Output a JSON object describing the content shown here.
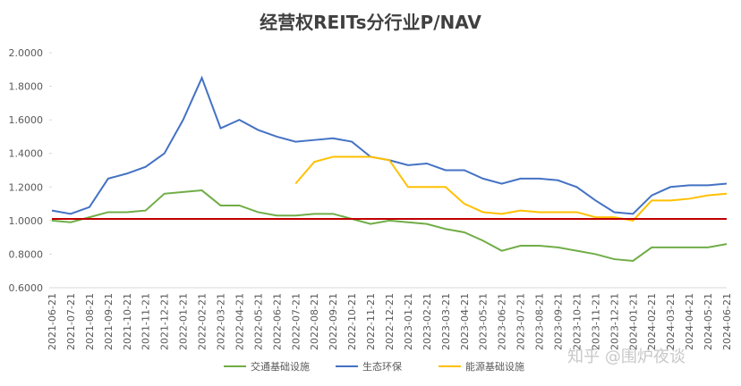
{
  "chart_data": {
    "type": "line",
    "title": "经营权REITs分行业P/NAV",
    "x": [
      "2021-06-21",
      "2021-07-21",
      "2021-08-21",
      "2021-09-21",
      "2021-10-21",
      "2021-11-21",
      "2021-12-21",
      "2022-01-21",
      "2022-02-21",
      "2022-03-21",
      "2022-04-21",
      "2022-05-21",
      "2022-06-21",
      "2022-07-21",
      "2022-08-21",
      "2022-09-21",
      "2022-10-21",
      "2022-11-21",
      "2022-12-21",
      "2023-01-21",
      "2023-02-21",
      "2023-03-21",
      "2023-04-21",
      "2023-05-21",
      "2023-06-21",
      "2023-07-21",
      "2023-08-21",
      "2023-09-21",
      "2023-10-21",
      "2023-11-21",
      "2023-12-21",
      "2024-01-21",
      "2024-02-21",
      "2024-03-21",
      "2024-04-21",
      "2024-05-21",
      "2024-06-21"
    ],
    "series": [
      {
        "name": "交通基础设施",
        "color": "#70ad47",
        "values": [
          1.0,
          0.99,
          1.02,
          1.05,
          1.05,
          1.06,
          1.16,
          1.17,
          1.18,
          1.09,
          1.09,
          1.05,
          1.03,
          1.03,
          1.04,
          1.04,
          1.01,
          0.98,
          1.0,
          0.99,
          0.98,
          0.95,
          0.93,
          0.88,
          0.82,
          0.85,
          0.85,
          0.84,
          0.82,
          0.8,
          0.77,
          0.76,
          0.84,
          0.84,
          0.84,
          0.84,
          0.86
        ]
      },
      {
        "name": "生态环保",
        "color": "#4472c4",
        "values": [
          1.06,
          1.04,
          1.08,
          1.25,
          1.28,
          1.32,
          1.4,
          1.6,
          1.85,
          1.55,
          1.6,
          1.54,
          1.5,
          1.47,
          1.48,
          1.49,
          1.47,
          1.38,
          1.36,
          1.33,
          1.34,
          1.3,
          1.3,
          1.25,
          1.22,
          1.25,
          1.25,
          1.24,
          1.2,
          1.12,
          1.05,
          1.04,
          1.15,
          1.2,
          1.21,
          1.21,
          1.22
        ]
      },
      {
        "name": "能源基础设施",
        "color": "#ffc000",
        "values": [
          null,
          null,
          null,
          null,
          null,
          null,
          null,
          null,
          null,
          null,
          null,
          null,
          null,
          1.22,
          1.35,
          1.38,
          1.38,
          1.38,
          1.36,
          1.2,
          1.2,
          1.2,
          1.1,
          1.05,
          1.04,
          1.06,
          1.05,
          1.05,
          1.05,
          1.02,
          1.02,
          1.0,
          1.12,
          1.12,
          1.13,
          1.15,
          1.16
        ]
      }
    ],
    "reference_line": {
      "value": 1.01,
      "color": "#c00000"
    },
    "ylim": [
      0.6,
      2.0
    ],
    "yticks": [
      {
        "value": 0.6,
        "label": "0.6000"
      },
      {
        "value": 0.8,
        "label": "0.8000"
      },
      {
        "value": 1.0,
        "label": "1.0000"
      },
      {
        "value": 1.2,
        "label": "1.2000"
      },
      {
        "value": 1.4,
        "label": "1.4000"
      },
      {
        "value": 1.6,
        "label": "1.6000"
      },
      {
        "value": 1.8,
        "label": "1.8000"
      },
      {
        "value": 2.0,
        "label": "2.0000"
      }
    ],
    "legend": "bottom",
    "watermark": "知乎 @围炉夜谈"
  }
}
